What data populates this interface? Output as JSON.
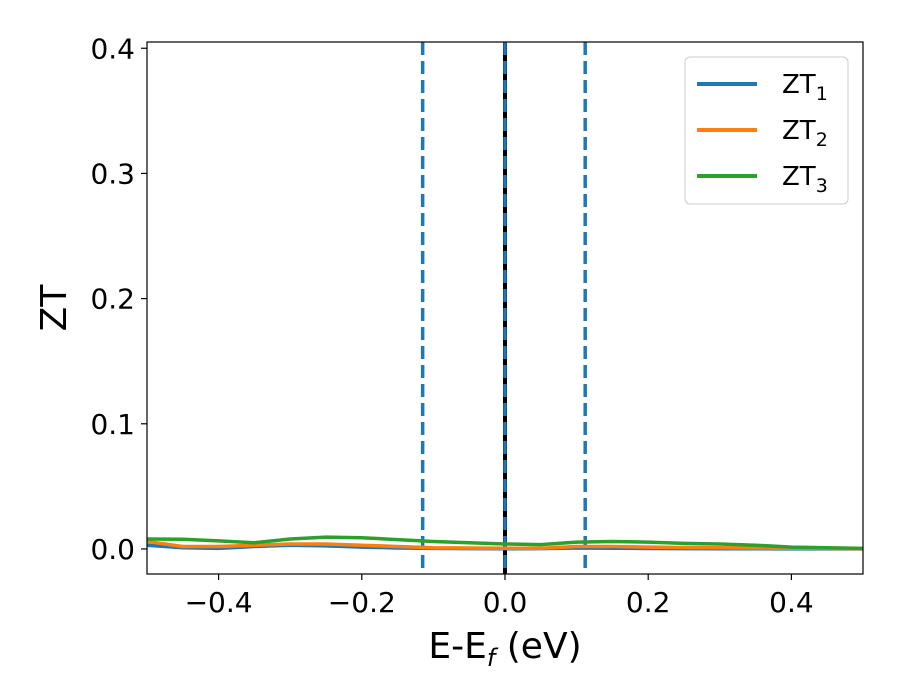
{
  "chart_data": {
    "type": "line",
    "title": "",
    "xlabel": {
      "main": "E-E",
      "sub": "f",
      "suffix": " (eV)"
    },
    "ylabel": "ZT",
    "xlim": [
      -0.5,
      0.5
    ],
    "ylim": [
      -0.02,
      0.405
    ],
    "xticks": [
      -0.4,
      -0.2,
      0.0,
      0.2,
      0.4
    ],
    "xtick_labels": [
      "−0.4",
      "−0.2",
      "0.0",
      "0.2",
      "0.4"
    ],
    "yticks": [
      0.0,
      0.1,
      0.2,
      0.3,
      0.4
    ],
    "ytick_labels": [
      "0.0",
      "0.1",
      "0.2",
      "0.3",
      "0.4"
    ],
    "grid": false,
    "legend_position": "top-right",
    "series": [
      {
        "name": "ZT",
        "sub": "1",
        "color": "#1f77b4",
        "x": [
          -0.5,
          -0.45,
          -0.4,
          -0.35,
          -0.3,
          -0.25,
          -0.2,
          -0.15,
          -0.1,
          -0.05,
          0.0,
          0.05,
          0.1,
          0.15,
          0.2,
          0.25,
          0.3,
          0.35,
          0.4,
          0.45,
          0.5
        ],
        "y": [
          0.003,
          0.001,
          0.0005,
          0.002,
          0.003,
          0.0025,
          0.0015,
          0.0008,
          0.0005,
          0.0003,
          0.0002,
          0.0003,
          0.0008,
          0.0006,
          0.0004,
          0.0003,
          0.0002,
          0.0002,
          0.0001,
          0.0001,
          0.0001
        ]
      },
      {
        "name": "ZT",
        "sub": "2",
        "color": "#ff7f0e",
        "x": [
          -0.5,
          -0.45,
          -0.4,
          -0.35,
          -0.3,
          -0.25,
          -0.2,
          -0.15,
          -0.1,
          -0.05,
          0.0,
          0.05,
          0.1,
          0.15,
          0.2,
          0.25,
          0.3,
          0.35,
          0.4,
          0.45,
          0.5
        ],
        "y": [
          0.006,
          0.002,
          0.002,
          0.003,
          0.004,
          0.004,
          0.003,
          0.002,
          0.001,
          0.0008,
          0.0006,
          0.0006,
          0.002,
          0.002,
          0.0015,
          0.0012,
          0.001,
          0.0008,
          0.0006,
          0.0004,
          0.0003
        ]
      },
      {
        "name": "ZT",
        "sub": "3",
        "color": "#2ca02c",
        "x": [
          -0.5,
          -0.45,
          -0.4,
          -0.35,
          -0.3,
          -0.25,
          -0.2,
          -0.15,
          -0.1,
          -0.05,
          0.0,
          0.05,
          0.1,
          0.15,
          0.2,
          0.25,
          0.3,
          0.35,
          0.4,
          0.45,
          0.5
        ],
        "y": [
          0.008,
          0.0078,
          0.0065,
          0.005,
          0.008,
          0.0095,
          0.009,
          0.0075,
          0.006,
          0.005,
          0.004,
          0.0035,
          0.0055,
          0.006,
          0.0055,
          0.0045,
          0.004,
          0.003,
          0.0015,
          0.001,
          0.0005
        ]
      }
    ],
    "vlines": [
      {
        "x": -0.115,
        "style": "dashed",
        "color": "#1f77b4"
      },
      {
        "x": 0.0,
        "style": "solid",
        "color": "#000000"
      },
      {
        "x": 0.0,
        "style": "dashed",
        "color": "#1f77b4"
      },
      {
        "x": 0.112,
        "style": "dashed",
        "color": "#1f77b4"
      }
    ]
  }
}
